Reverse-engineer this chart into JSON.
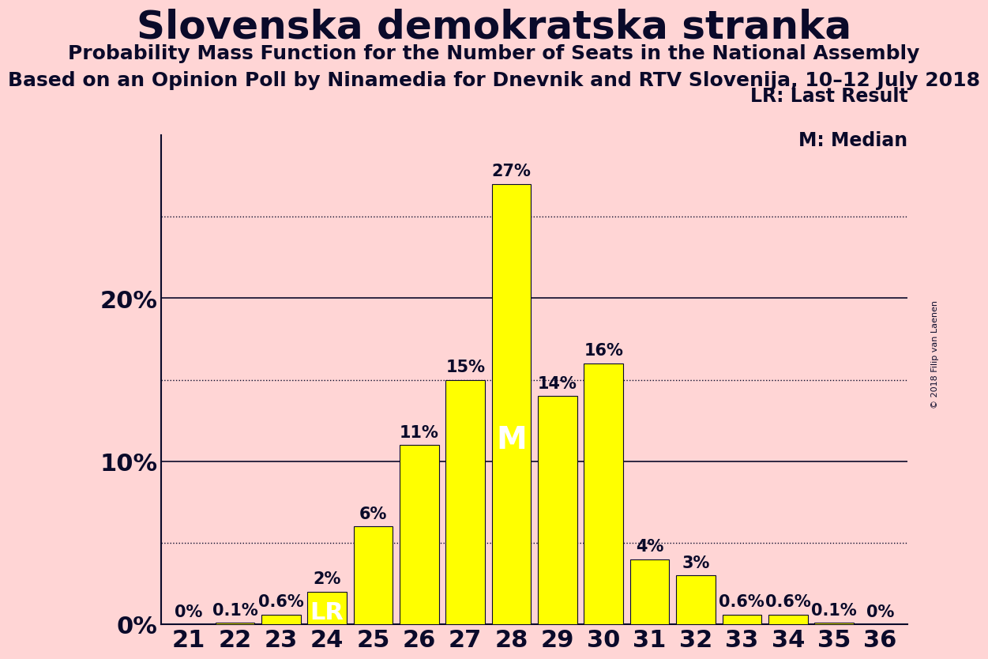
{
  "title": "Slovenska demokratska stranka",
  "subtitle1": "Probability Mass Function for the Number of Seats in the National Assembly",
  "subtitle2": "Based on an Opinion Poll by Ninamedia for Dnevnik and RTV Slovenija, 10–12 July 2018",
  "copyright": "© 2018 Filip van Laenen",
  "categories": [
    21,
    22,
    23,
    24,
    25,
    26,
    27,
    28,
    29,
    30,
    31,
    32,
    33,
    34,
    35,
    36
  ],
  "values": [
    0.0,
    0.1,
    0.6,
    2.0,
    6.0,
    11.0,
    15.0,
    27.0,
    14.0,
    16.0,
    4.0,
    3.0,
    0.6,
    0.6,
    0.1,
    0.0
  ],
  "bar_color": "#ffff00",
  "background_color": "#ffd5d5",
  "text_color": "#0a0a2a",
  "LR_bar": 24,
  "M_bar": 28,
  "yticks": [
    0,
    10,
    20
  ],
  "dotted_lines": [
    5,
    15,
    25
  ],
  "ylim": [
    0,
    30
  ],
  "ylabel_fontsize": 22,
  "xlabel_fontsize": 22,
  "title_fontsize": 36,
  "subtitle_fontsize": 18,
  "bar_label_fontsize": 15,
  "annotation_fontsize": 22,
  "legend_fontsize": 17,
  "legend_text": [
    "LR: Last Result",
    "M: Median"
  ]
}
